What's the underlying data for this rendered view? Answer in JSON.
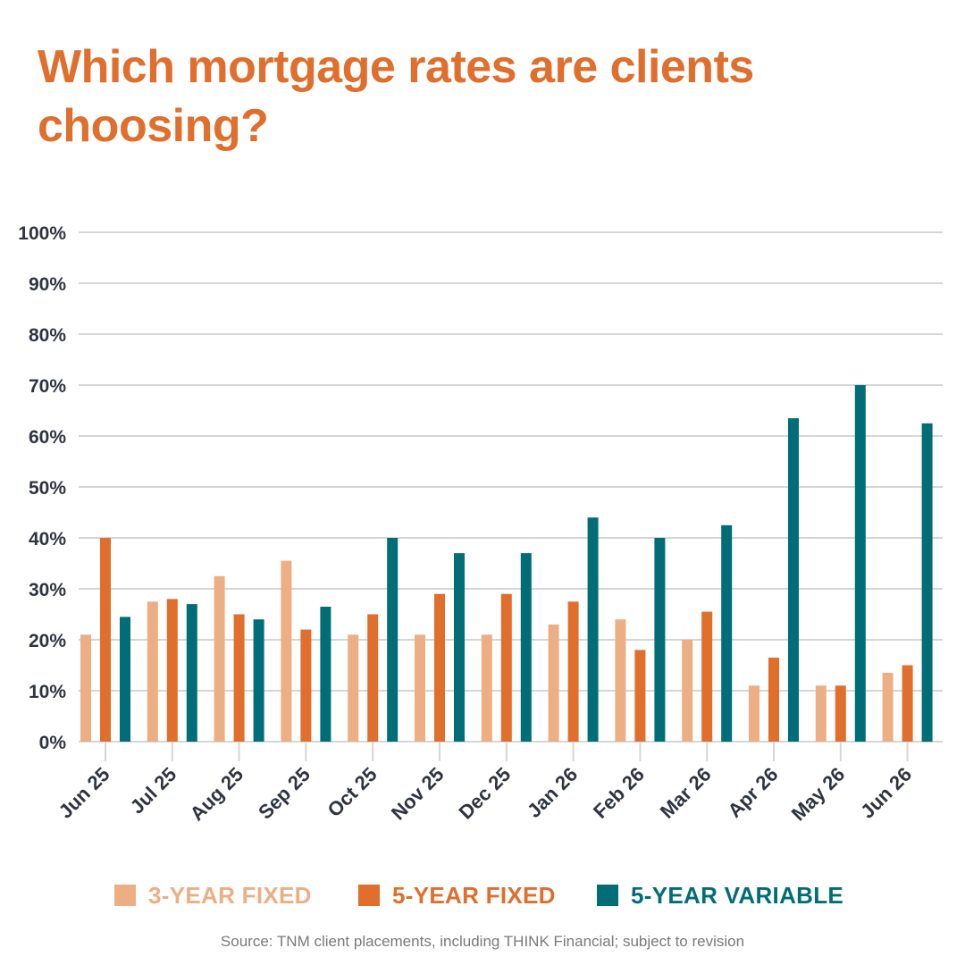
{
  "title": "Which mortgage rates are clients choosing?",
  "source": "Source: TNM client placements, including THINK Financial; subject to revision",
  "colors": {
    "three_year_fixed": "#eeae84",
    "five_year_fixed": "#e06e2c",
    "five_year_variable": "#006d77",
    "title": "#e06e2c",
    "axis_text": "#2f3440",
    "gridline": "#d4d6da"
  },
  "chart_data": {
    "type": "bar",
    "title": "Which mortgage rates are clients choosing?",
    "xlabel": "",
    "ylabel": "",
    "ylim": [
      0,
      100
    ],
    "yticks": [
      "0%",
      "10%",
      "20%",
      "30%",
      "40%",
      "50%",
      "60%",
      "70%",
      "80%",
      "90%",
      "100%"
    ],
    "grid": true,
    "legend": "bottom",
    "categories": [
      "Jun 25",
      "Jul 25",
      "Aug 25",
      "Sep 25",
      "Oct 25",
      "Nov 25",
      "Dec 25",
      "Jan 26",
      "Feb 26",
      "Mar 26",
      "Apr 26",
      "May 26",
      "Jun 26"
    ],
    "series": [
      {
        "name": "3-YEAR FIXED",
        "color": "#eeae84",
        "values": [
          21,
          27.5,
          32.5,
          35.5,
          21,
          21,
          21,
          23,
          24,
          20,
          11,
          11,
          13.5
        ]
      },
      {
        "name": "5-YEAR FIXED",
        "color": "#e06e2c",
        "values": [
          40,
          28,
          25,
          22,
          25,
          29,
          29,
          27.5,
          18,
          25.5,
          16.5,
          11,
          15
        ]
      },
      {
        "name": "5-YEAR VARIABLE",
        "color": "#006d77",
        "values": [
          24.5,
          27,
          24,
          26.5,
          40,
          37,
          37,
          44,
          40,
          42.5,
          63.5,
          70,
          62.5
        ]
      }
    ]
  }
}
